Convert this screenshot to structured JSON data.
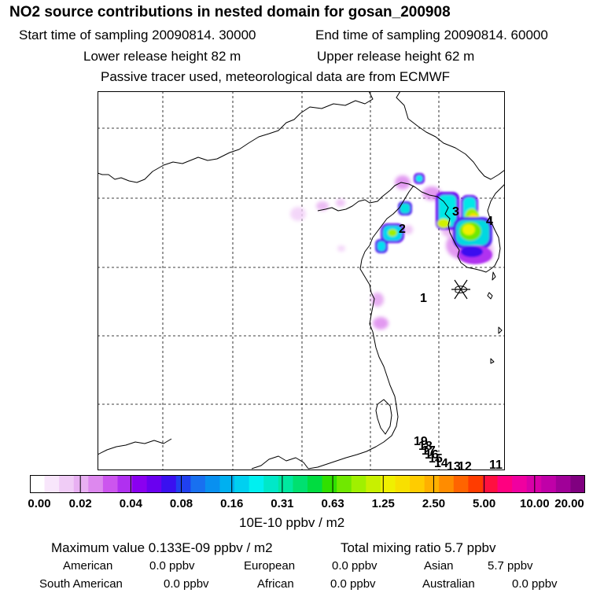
{
  "header": {
    "title": "NO2 source contributions in nested domain for gosan_200908",
    "start_time": "Start time of sampling 20090814. 30000",
    "end_time": "End time of sampling 20090814. 60000",
    "lower_height": "Lower release height   82 m",
    "upper_height": "Upper release height   62 m",
    "tracer_note": "Passive tracer used, meteorological data are from ECMWF"
  },
  "map": {
    "site_labels": [
      "1",
      "2",
      "3",
      "4",
      "19",
      "18",
      "17",
      "16",
      "15",
      "14",
      "13",
      "12",
      "11"
    ]
  },
  "colorbar": {
    "ticks": [
      "0.00",
      "0.02",
      "0.04",
      "0.08",
      "0.16",
      "0.31",
      "0.63",
      "1.25",
      "2.50",
      "5.00",
      "10.00",
      "20.00"
    ],
    "colors": [
      "#ffffff",
      "#f8e6fb",
      "#f0ccf6",
      "#e8b0f2",
      "#dd88ee",
      "#cc55ee",
      "#b030f0",
      "#8a00f0",
      "#6a00f0",
      "#3a10f0",
      "#2040f0",
      "#1870f0",
      "#0890f0",
      "#00b0f0",
      "#00d0f0",
      "#00f0f0",
      "#00e8c8",
      "#00e8a0",
      "#00e070",
      "#00dc40",
      "#30e000",
      "#70e800",
      "#a0f000",
      "#c8f000",
      "#f0f000",
      "#f8e000",
      "#ffcc00",
      "#ffb000",
      "#ff8c00",
      "#ff6400",
      "#ff3c00",
      "#ff1040",
      "#ff0080",
      "#f000a0",
      "#d800a8",
      "#c000a8",
      "#a00098",
      "#800080"
    ],
    "unit": "10E-10 ppbv / m2"
  },
  "footer": {
    "max_value": "Maximum value  0.133E-09 ppbv / m2",
    "total_mixing": "Total mixing ratio       5.7 ppbv",
    "regions": [
      {
        "name": "American",
        "value": "0.0 ppbv"
      },
      {
        "name": "European",
        "value": "0.0 ppbv"
      },
      {
        "name": "Asian",
        "value": "5.7 ppbv"
      },
      {
        "name": "South American",
        "value": "0.0 ppbv"
      },
      {
        "name": "African",
        "value": "0.0 ppbv"
      },
      {
        "name": "Australian",
        "value": "0.0 ppbv"
      }
    ]
  }
}
